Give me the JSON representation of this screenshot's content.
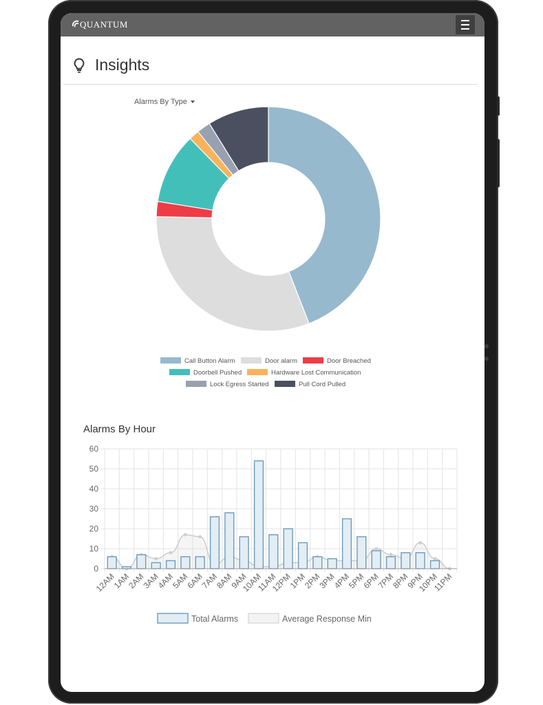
{
  "app": {
    "logo_text": "QUANTUM"
  },
  "page": {
    "title": "Insights"
  },
  "donut_selector": {
    "label": "Alarms By Type"
  },
  "hour_chart": {
    "title": "Alarms By Hour"
  },
  "chart_data": [
    {
      "type": "pie",
      "variant": "doughnut",
      "title": "",
      "labels": [
        "Call Button Alarm",
        "Door alarm",
        "Door Breached",
        "Doorbell Pushed",
        "Hardware Lost Communication",
        "Lock Egress Started",
        "Pull Cord Pulled"
      ],
      "values": [
        44.5,
        31.5,
        2.2,
        10.3,
        1.5,
        2.0,
        8.9
      ],
      "colors": [
        "#96b9ce",
        "#dddddd",
        "#ee3d46",
        "#43bfba",
        "#fcb25a",
        "#99a1b1",
        "#4b5060"
      ],
      "legend": "bottom"
    },
    {
      "type": "bar",
      "title": "Alarms By Hour",
      "categories": [
        "12AM",
        "1AM",
        "2AM",
        "3AM",
        "4AM",
        "5AM",
        "6AM",
        "7AM",
        "8AM",
        "9AM",
        "10AM",
        "11AM",
        "12PM",
        "1PM",
        "2PM",
        "3PM",
        "4PM",
        "5PM",
        "6PM",
        "7PM",
        "8PM",
        "9PM",
        "10PM",
        "11PM"
      ],
      "series": [
        {
          "name": "Total Alarms",
          "type": "bar",
          "values": [
            6,
            1,
            7,
            3,
            4,
            6,
            6,
            26,
            28,
            16,
            54,
            17,
            20,
            13,
            6,
            5,
            25,
            16,
            9,
            6,
            8,
            8,
            4,
            0
          ],
          "color": "#6a9bbd"
        },
        {
          "name": "Average Response Min",
          "type": "area",
          "values": [
            6,
            0,
            7,
            5,
            8,
            17,
            16,
            2,
            6,
            4,
            1,
            1,
            3,
            3,
            6,
            4,
            4,
            4,
            10,
            7,
            5,
            13,
            5,
            0
          ],
          "color": "#cccccc"
        }
      ],
      "ylim": [
        0,
        60
      ],
      "yticks": [
        0,
        10,
        20,
        30,
        40,
        50,
        60
      ],
      "grid": true,
      "legend": "bottom"
    }
  ]
}
